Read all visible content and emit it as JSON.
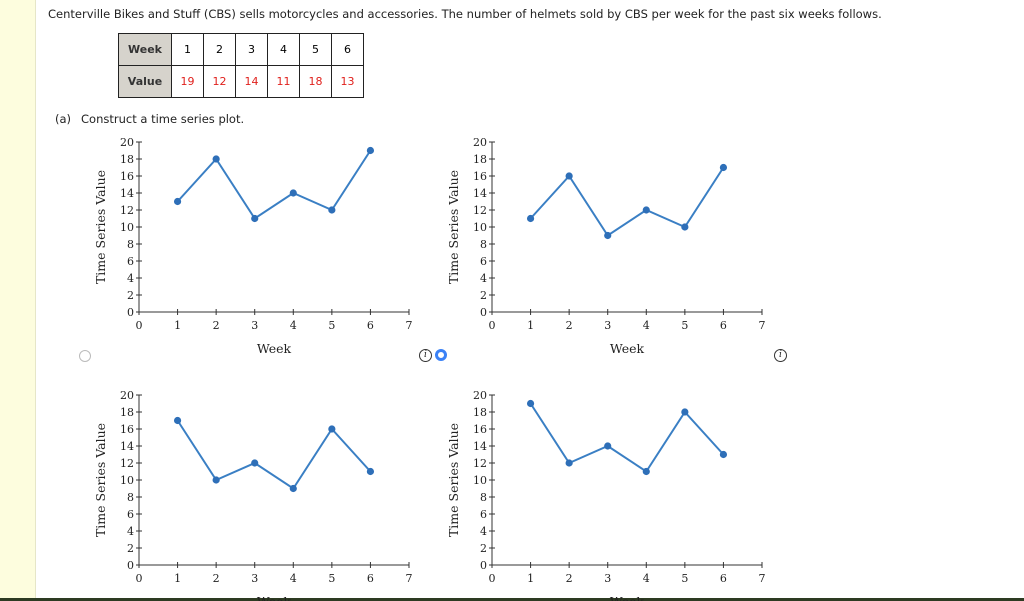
{
  "question": "Centerville Bikes and Stuff (CBS) sells motorcycles and accessories. The number of helmets sold by CBS per week for the past six weeks follows.",
  "table": {
    "row_headers": [
      "Week",
      "Value"
    ],
    "weeks": [
      "1",
      "2",
      "3",
      "4",
      "5",
      "6"
    ],
    "values": [
      "19",
      "12",
      "14",
      "11",
      "18",
      "13"
    ]
  },
  "part_a": {
    "label": "(a)",
    "text": "Construct a time series plot."
  },
  "info_icon": "i",
  "selected_option": 2,
  "chart_data": [
    {
      "type": "line",
      "x": [
        1,
        2,
        3,
        4,
        5,
        6
      ],
      "values": [
        13,
        18,
        11,
        14,
        12,
        19
      ],
      "xlabel": "Week",
      "ylabel": "Time Series Value",
      "xlim": [
        0,
        7
      ],
      "ylim": [
        0,
        20
      ],
      "xticks": [
        0,
        1,
        2,
        3,
        4,
        5,
        6,
        7
      ],
      "yticks": [
        0,
        2,
        4,
        6,
        8,
        10,
        12,
        14,
        16,
        18,
        20
      ],
      "color": "#3a7fc4"
    },
    {
      "type": "line",
      "x": [
        1,
        2,
        3,
        4,
        5,
        6
      ],
      "values": [
        11,
        16,
        9,
        12,
        10,
        17
      ],
      "xlabel": "Week",
      "ylabel": "Time Series Value",
      "xlim": [
        0,
        7
      ],
      "ylim": [
        0,
        20
      ],
      "xticks": [
        0,
        1,
        2,
        3,
        4,
        5,
        6,
        7
      ],
      "yticks": [
        0,
        2,
        4,
        6,
        8,
        10,
        12,
        14,
        16,
        18,
        20
      ],
      "color": "#3a7fc4"
    },
    {
      "type": "line",
      "x": [
        1,
        2,
        3,
        4,
        5,
        6
      ],
      "values": [
        17,
        10,
        12,
        9,
        16,
        11
      ],
      "xlabel": "Week",
      "ylabel": "Time Series Value",
      "xlim": [
        0,
        7
      ],
      "ylim": [
        0,
        20
      ],
      "xticks": [
        0,
        1,
        2,
        3,
        4,
        5,
        6,
        7
      ],
      "yticks": [
        0,
        2,
        4,
        6,
        8,
        10,
        12,
        14,
        16,
        18,
        20
      ],
      "color": "#3a7fc4"
    },
    {
      "type": "line",
      "x": [
        1,
        2,
        3,
        4,
        5,
        6
      ],
      "values": [
        19,
        12,
        14,
        11,
        18,
        13
      ],
      "xlabel": "Week",
      "ylabel": "Time Series Value",
      "xlim": [
        0,
        7
      ],
      "ylim": [
        0,
        20
      ],
      "xticks": [
        0,
        1,
        2,
        3,
        4,
        5,
        6,
        7
      ],
      "yticks": [
        0,
        2,
        4,
        6,
        8,
        10,
        12,
        14,
        16,
        18,
        20
      ],
      "color": "#3a7fc4"
    }
  ]
}
